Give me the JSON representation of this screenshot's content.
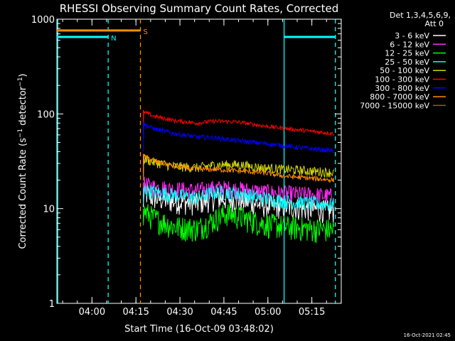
{
  "chart_data": {
    "type": "line",
    "title": "RHESSI Observing Summary Count Rates, Corrected",
    "xlabel": "Start Time (16-Oct-09 03:48:02)",
    "ylabel": "Corrected Count Rate (s⁻¹ detector⁻¹)",
    "yscale": "log",
    "ylim": [
      1,
      1000
    ],
    "xlim_minutes": [
      0,
      97
    ],
    "x_tick_minutes": [
      11.97,
      26.97,
      41.97,
      56.97,
      71.97,
      86.97
    ],
    "x_tick_labels": [
      "04:00",
      "04:15",
      "04:30",
      "04:45",
      "05:00",
      "05:15"
    ],
    "y_ticks": [
      1,
      10,
      100,
      1000
    ],
    "y_tick_labels": [
      "1",
      "10",
      "100",
      "1000"
    ],
    "detectors_label": "Det 1,3,4,5,6,9,",
    "attenuator_label": "Att 0",
    "footer_timestamp": "16-Oct-2021 02:45",
    "data_start_minute": 29.5,
    "series": [
      {
        "name": "3 - 6 keV",
        "color": "#ffffff",
        "t": [
          29.5,
          33,
          40,
          48,
          54,
          62,
          70,
          78,
          86,
          94.5
        ],
        "values": [
          15,
          13,
          12,
          11.5,
          13,
          12.5,
          11,
          10.5,
          10,
          9.5
        ]
      },
      {
        "name": "6 - 12 keV",
        "color": "#ff2df5",
        "t": [
          29.5,
          33,
          40,
          48,
          54,
          62,
          70,
          78,
          86,
          94.5
        ],
        "values": [
          18,
          17,
          16,
          15.5,
          16.5,
          16,
          15,
          14.5,
          14,
          13.5
        ]
      },
      {
        "name": "12 - 25 keV",
        "color": "#00ff00",
        "t": [
          29.5,
          33,
          40,
          48,
          53,
          58,
          64,
          70,
          78,
          86,
          94.5
        ],
        "values": [
          9.5,
          8,
          6.5,
          6.2,
          7.5,
          9,
          8,
          7,
          6.5,
          6.2,
          6
        ]
      },
      {
        "name": "25 - 50 keV",
        "color": "#00ffff",
        "t": [
          29.5,
          33,
          40,
          48,
          54,
          62,
          70,
          78,
          86,
          94.5
        ],
        "values": [
          16,
          15,
          14,
          13,
          15,
          14.5,
          13,
          12,
          11.5,
          11
        ]
      },
      {
        "name": "50 - 100 keV",
        "color": "#d4d400",
        "t": [
          29.5,
          33,
          40,
          48,
          54,
          62,
          70,
          78,
          86,
          94.5
        ],
        "values": [
          34,
          31,
          28,
          27,
          29,
          29,
          27,
          26,
          25,
          24
        ]
      },
      {
        "name": "100 - 300 keV",
        "color": "#ff0000",
        "t": [
          29.5,
          33,
          40,
          48,
          54,
          62,
          70,
          78,
          86,
          94.5
        ],
        "values": [
          105,
          95,
          85,
          80,
          84,
          82,
          75,
          70,
          66,
          62
        ]
      },
      {
        "name": "300 - 800 keV",
        "color": "#0000ff",
        "t": [
          29.5,
          33,
          40,
          48,
          54,
          62,
          70,
          78,
          86,
          94.5
        ],
        "values": [
          78,
          70,
          62,
          57,
          56,
          52,
          49,
          46,
          43,
          41
        ]
      },
      {
        "name": "800 - 7000 keV",
        "color": "#ff8c00",
        "t": [
          29.5,
          33,
          40,
          48,
          54,
          62,
          70,
          78,
          86,
          94.5
        ],
        "values": [
          36,
          32,
          28,
          26,
          26,
          25,
          24,
          22,
          21,
          20
        ]
      },
      {
        "name": "7000 - 15000 keV",
        "color": "#a05a00",
        "t": [],
        "values": []
      }
    ],
    "flags": [
      {
        "label": "N",
        "color": "#00ffff",
        "level": 650,
        "segments": [
          [
            0,
            17.5
          ],
          [
            77.5,
            95
          ]
        ]
      },
      {
        "label": "S",
        "color": "#ff8c00",
        "level": 760,
        "segments": [
          [
            0,
            28.5
          ]
        ]
      }
    ],
    "vertical_markers": [
      {
        "minute": 0.3,
        "color": "#00ffff",
        "style": "solid"
      },
      {
        "minute": 17.5,
        "color": "#00ffff",
        "style": "dashed"
      },
      {
        "minute": 28.5,
        "color": "#ff8c00",
        "style": "dashed"
      },
      {
        "minute": 77.5,
        "color": "#00ffff",
        "style": "solid"
      },
      {
        "minute": 95,
        "color": "#00ffff",
        "style": "dashed"
      }
    ]
  }
}
